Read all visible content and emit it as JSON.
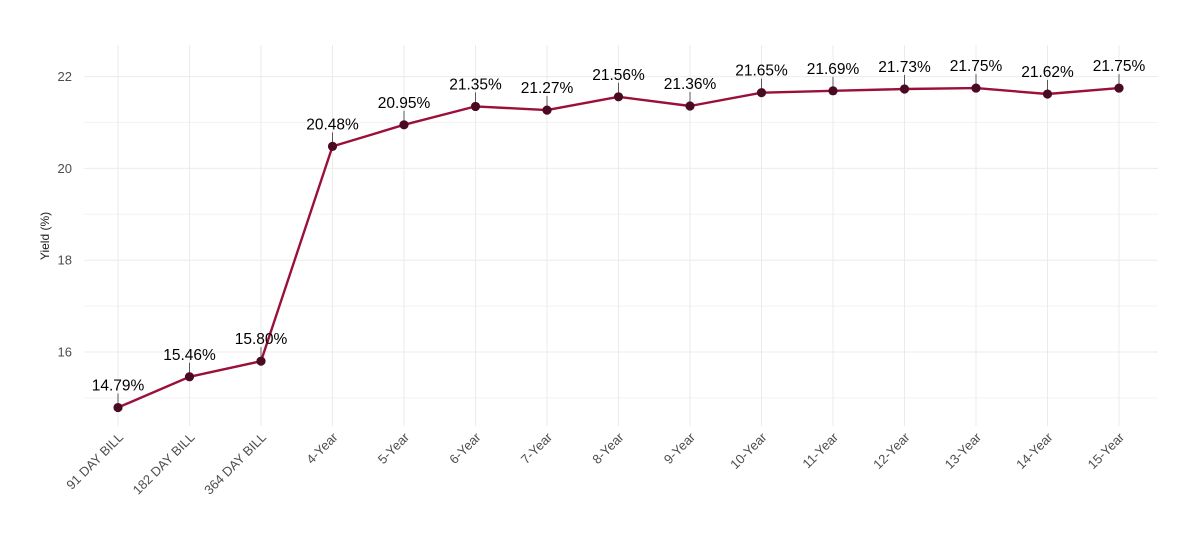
{
  "chart_data": {
    "type": "line",
    "title": "",
    "xlabel": "",
    "ylabel": "Yield (%)",
    "categories": [
      "91 DAY BILL",
      "182 DAY BILL",
      "364 DAY BILL",
      "4-Year",
      "5-Year",
      "6-Year",
      "7-Year",
      "8-Year",
      "9-Year",
      "10-Year",
      "11-Year",
      "12-Year",
      "13-Year",
      "14-Year",
      "15-Year"
    ],
    "values": [
      14.79,
      15.46,
      15.8,
      20.48,
      20.95,
      21.35,
      21.27,
      21.56,
      21.36,
      21.65,
      21.69,
      21.73,
      21.75,
      21.62,
      21.75
    ],
    "data_labels": [
      "14.79%",
      "15.46%",
      "15.80%",
      "20.48%",
      "20.95%",
      "21.35%",
      "21.27%",
      "21.56%",
      "21.36%",
      "21.65%",
      "21.69%",
      "21.73%",
      "21.75%",
      "21.62%",
      "21.75%"
    ],
    "yticks": [
      16,
      18,
      20,
      22
    ],
    "ylim": [
      14.57,
      22.6
    ],
    "grid": true,
    "legend": "none",
    "colors": {
      "line": "#9a1038",
      "point": "#4a0a24",
      "grid": "#ebebeb",
      "label": "#000000"
    }
  }
}
